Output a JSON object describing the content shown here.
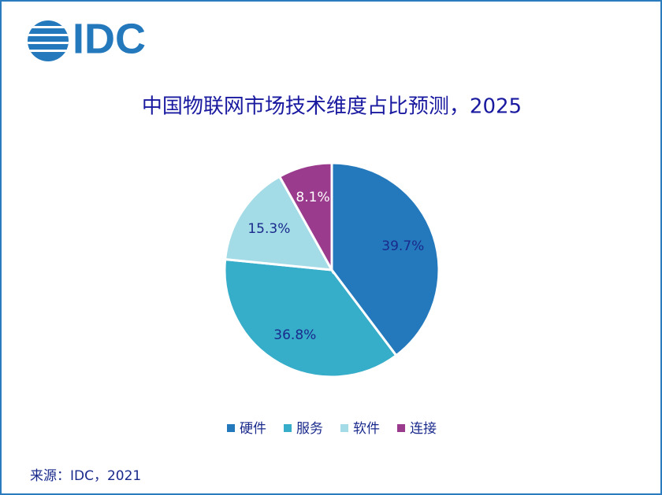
{
  "logo": "IDC",
  "chart_data": {
    "type": "pie",
    "title": "中国物联网市场技术维度占比预测，2025",
    "categories": [
      "硬件",
      "服务",
      "软件",
      "连接"
    ],
    "values": [
      39.7,
      36.8,
      15.3,
      8.1
    ],
    "value_labels": [
      "39.7%",
      "36.8%",
      "15.3%",
      "8.1%"
    ],
    "colors": [
      "#2479bd",
      "#36adc9",
      "#a3dbe6",
      "#9b3b8e"
    ],
    "value_label_colors": [
      "#1a2a8c",
      "#1a2a8c",
      "#1a2a8c",
      "#ffffff"
    ],
    "legend": "bottom",
    "source": "来源：IDC，2021"
  }
}
